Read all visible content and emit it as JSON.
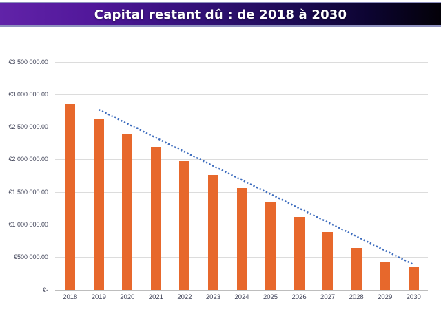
{
  "title": {
    "text": "Capital restant dû : de 2018 à 2030"
  },
  "colors": {
    "bar": "#E7682C",
    "trendline": "#3E6DBE",
    "gridline": "#DCDCDC",
    "axis_line": "#BDBDBD",
    "tick_label_text": "#3F4257",
    "title_text": "#FFFFFF",
    "title_gradient_left": "#6123A8",
    "title_gradient_right": "#030108",
    "title_bar_border": "#8D90BE",
    "background": "#FFFFFF"
  },
  "chart_data": {
    "type": "bar",
    "title": "Capital restant dû : de 2018 à 2030",
    "xlabel": "",
    "ylabel": "",
    "categories": [
      "2018",
      "2019",
      "2020",
      "2021",
      "2022",
      "2023",
      "2024",
      "2025",
      "2026",
      "2027",
      "2028",
      "2029",
      "2030"
    ],
    "values": [
      2860000,
      2625000,
      2400000,
      2185000,
      1975000,
      1770000,
      1560000,
      1345000,
      1120000,
      890000,
      650000,
      430000,
      350000
    ],
    "series_name": "Capital restant dû",
    "bar_color": "#E7682C",
    "ylim": [
      0,
      3500000
    ],
    "ytick_step": 500000,
    "ytick_labels": [
      "€-",
      "€500 000.00",
      "€1 000 000.00",
      "€1 500 000.00",
      "€2 000 000.00",
      "€2 500 000.00",
      "€3 000 000.00",
      "€3 500 000.00"
    ],
    "grid": true,
    "legend_position": "none",
    "trendline": {
      "type": "linear",
      "style": "dotted",
      "color": "#3E6DBE",
      "start_category": "2019",
      "start_value": 2770000,
      "end_category": "2030",
      "end_value": 390000
    }
  }
}
